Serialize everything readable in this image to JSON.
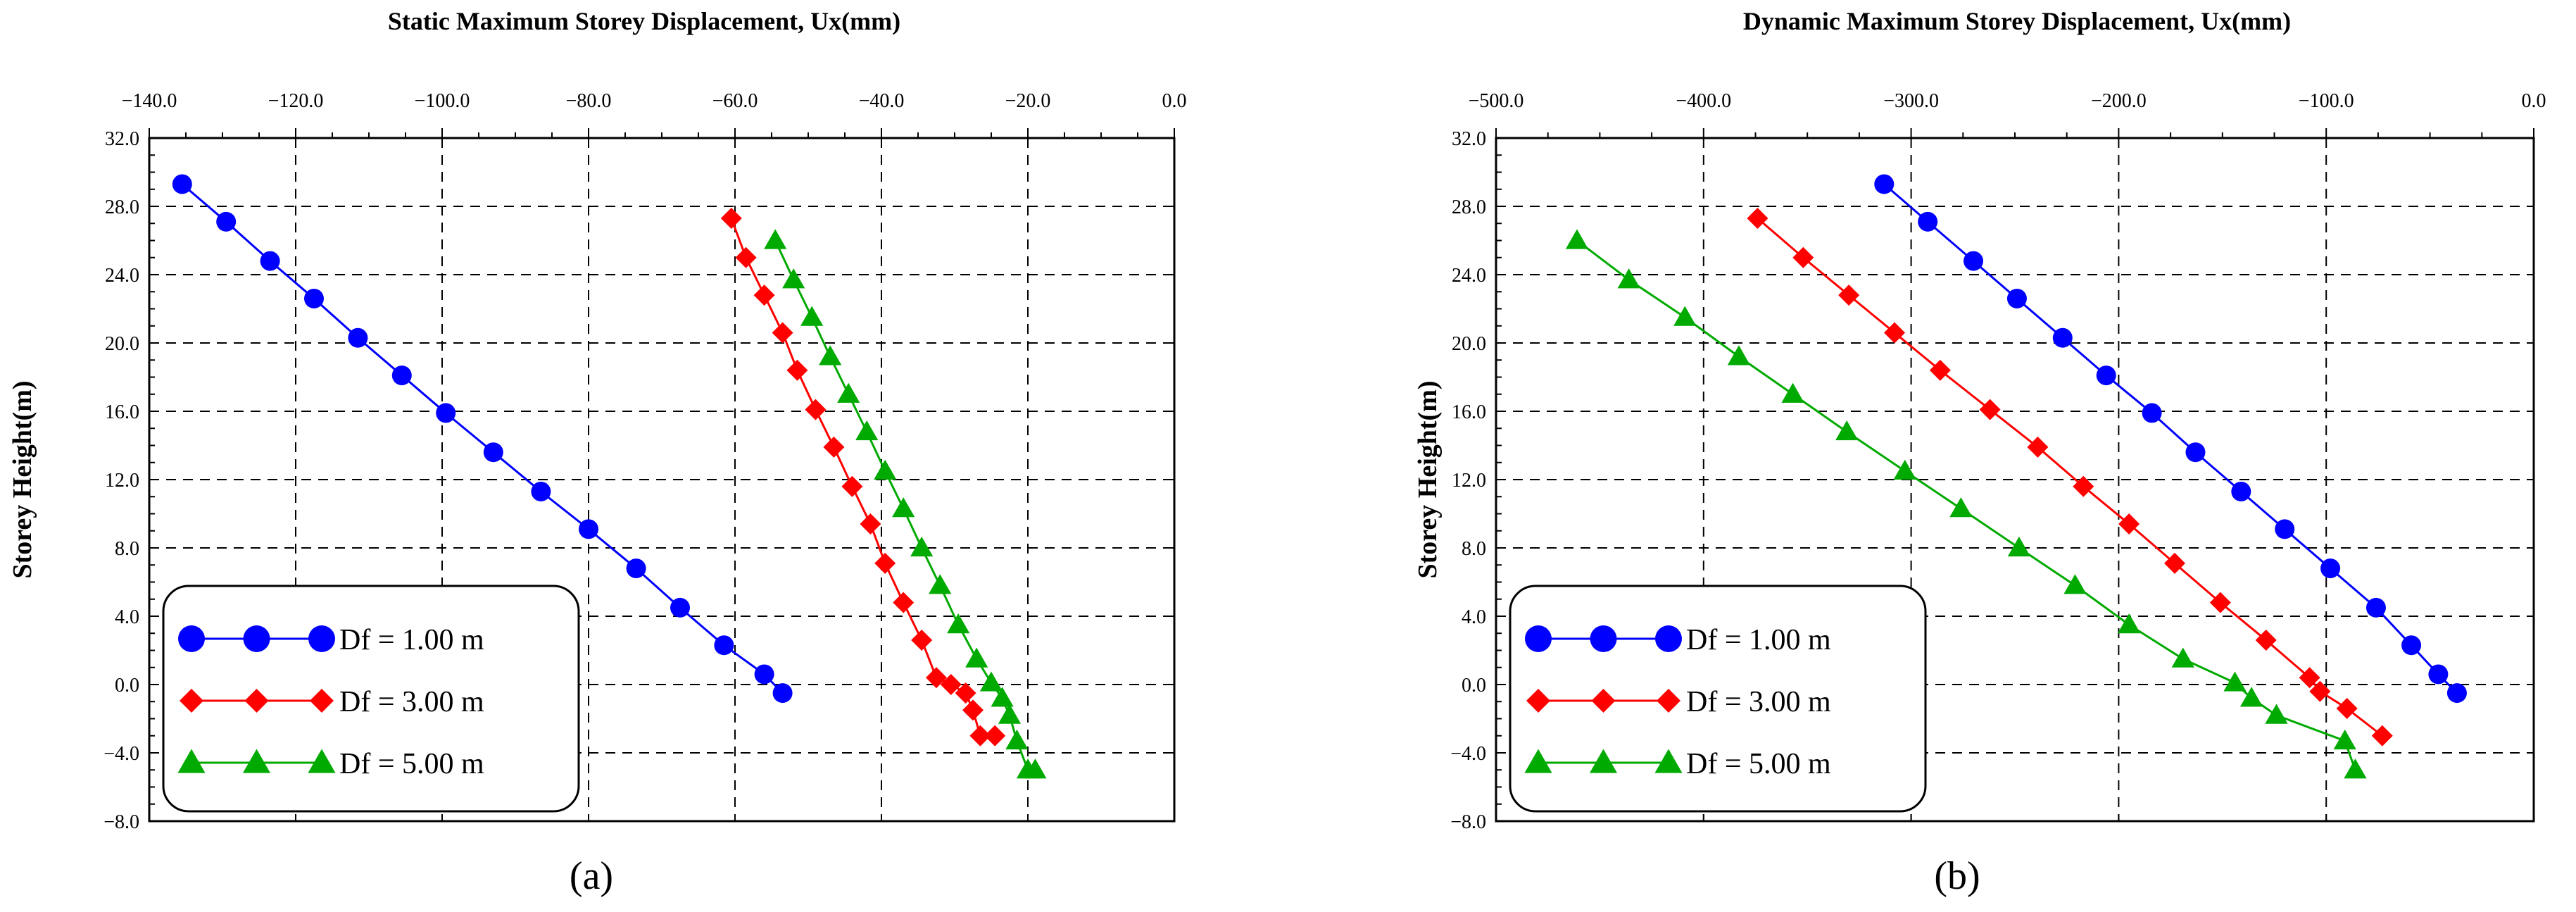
{
  "chart_data": [
    {
      "type": "line",
      "title": "Static Maximum Storey Displacement, Ux(mm)",
      "ylabel": "Storey Height(m)",
      "panel_label": "(a)",
      "xlim": [
        -140,
        0
      ],
      "ylim": [
        -8,
        32
      ],
      "xticks": [
        -140,
        -120,
        -100,
        -80,
        -60,
        -40,
        -20,
        0
      ],
      "xtick_labels": [
        "−140.0",
        "−120.0",
        "−100.0",
        "−80.0",
        "−60.0",
        "−40.0",
        "−20.0",
        "0.0"
      ],
      "yticks": [
        -8,
        -4,
        0,
        4,
        8,
        12,
        16,
        20,
        24,
        28,
        32
      ],
      "ytick_labels": [
        "−8.0",
        "−4.0",
        "0.0",
        "4.0",
        "8.0",
        "12.0",
        "16.0",
        "20.0",
        "24.0",
        "28.0",
        "32.0"
      ],
      "grid": true,
      "legend": "bottom-left",
      "series": [
        {
          "name": "Df = 1.00 m",
          "color": "#0000ff",
          "marker": "circle",
          "x": [
            -135.5,
            -129.5,
            -123.5,
            -117.5,
            -111.5,
            -105.5,
            -99.5,
            -93,
            -86.5,
            -80,
            -73.5,
            -67.5,
            -61.5,
            -56,
            -53.5
          ],
          "y": [
            29.3,
            27.1,
            24.8,
            22.6,
            20.3,
            18.1,
            15.9,
            13.6,
            11.3,
            9.1,
            6.8,
            4.5,
            2.3,
            0.6,
            -0.5
          ]
        },
        {
          "name": "Df = 3.00 m",
          "color": "#ff0000",
          "marker": "diamond",
          "x": [
            -60.5,
            -58.5,
            -56,
            -53.5,
            -51.5,
            -49,
            -46.5,
            -44,
            -41.5,
            -39.5,
            -37,
            -34.5,
            -32.5,
            -30.5,
            -28.5,
            -27.5,
            -26.5,
            -24.5
          ],
          "y": [
            27.3,
            25.0,
            22.8,
            20.6,
            18.4,
            16.1,
            13.9,
            11.6,
            9.4,
            7.1,
            4.8,
            2.6,
            0.4,
            0.0,
            -0.5,
            -1.5,
            -3.0,
            -3.0
          ]
        },
        {
          "name": "Df = 5.00 m",
          "color": "#00aa00",
          "marker": "triangle",
          "x": [
            -54.5,
            -52,
            -49.5,
            -47,
            -44.5,
            -42,
            -39.5,
            -37,
            -34.5,
            -32,
            -29.5,
            -27,
            -25,
            -23.5,
            -22.5,
            -21.5,
            -20,
            -19
          ],
          "y": [
            26.0,
            23.7,
            21.5,
            19.2,
            17.0,
            14.8,
            12.5,
            10.3,
            8.0,
            5.8,
            3.5,
            1.5,
            0.1,
            -0.8,
            -1.8,
            -3.3,
            -5.0,
            -5.0
          ]
        }
      ]
    },
    {
      "type": "line",
      "title": "Dynamic Maximum Storey Displacement, Ux(mm)",
      "ylabel": "Storey Height(m)",
      "panel_label": "(b)",
      "xlim": [
        -500,
        0
      ],
      "ylim": [
        -8,
        32
      ],
      "xticks": [
        -500,
        -400,
        -300,
        -200,
        -100,
        0
      ],
      "xtick_labels": [
        "−500.0",
        "−400.0",
        "−300.0",
        "−200.0",
        "−100.0",
        "0.0"
      ],
      "yticks": [
        -8,
        -4,
        0,
        4,
        8,
        12,
        16,
        20,
        24,
        28,
        32
      ],
      "ytick_labels": [
        "−8.0",
        "−4.0",
        "0.0",
        "4.0",
        "8.0",
        "12.0",
        "16.0",
        "20.0",
        "24.0",
        "28.0",
        "32.0"
      ],
      "grid": true,
      "legend": "bottom-left",
      "series": [
        {
          "name": "Df = 1.00 m",
          "color": "#0000ff",
          "marker": "circle",
          "x": [
            -313,
            -292,
            -270,
            -249,
            -227,
            -206,
            -184,
            -163,
            -141,
            -120,
            -98,
            -76,
            -59,
            -46,
            -37
          ],
          "y": [
            29.3,
            27.1,
            24.8,
            22.6,
            20.3,
            18.1,
            15.9,
            13.6,
            11.3,
            9.1,
            6.8,
            4.5,
            2.3,
            0.6,
            -0.5
          ]
        },
        {
          "name": "Df = 3.00 m",
          "color": "#ff0000",
          "marker": "diamond",
          "x": [
            -374,
            -352,
            -330,
            -308,
            -286,
            -262,
            -239,
            -217,
            -195,
            -173,
            -151,
            -129,
            -108,
            -103,
            -90,
            -73
          ],
          "y": [
            27.3,
            25.0,
            22.8,
            20.6,
            18.4,
            16.1,
            13.9,
            11.6,
            9.4,
            7.1,
            4.8,
            2.6,
            0.4,
            -0.4,
            -1.4,
            -3.0
          ]
        },
        {
          "name": "Df = 5.00 m",
          "color": "#00aa00",
          "marker": "triangle",
          "x": [
            -461,
            -436,
            -409,
            -383,
            -357,
            -331,
            -303,
            -276,
            -248,
            -221,
            -195,
            -169,
            -144,
            -136,
            -124,
            -91,
            -86
          ],
          "y": [
            26.0,
            23.7,
            21.5,
            19.2,
            17.0,
            14.8,
            12.5,
            10.3,
            8.0,
            5.8,
            3.5,
            1.5,
            0.1,
            -0.8,
            -1.8,
            -3.3,
            -5.0
          ]
        }
      ]
    }
  ]
}
